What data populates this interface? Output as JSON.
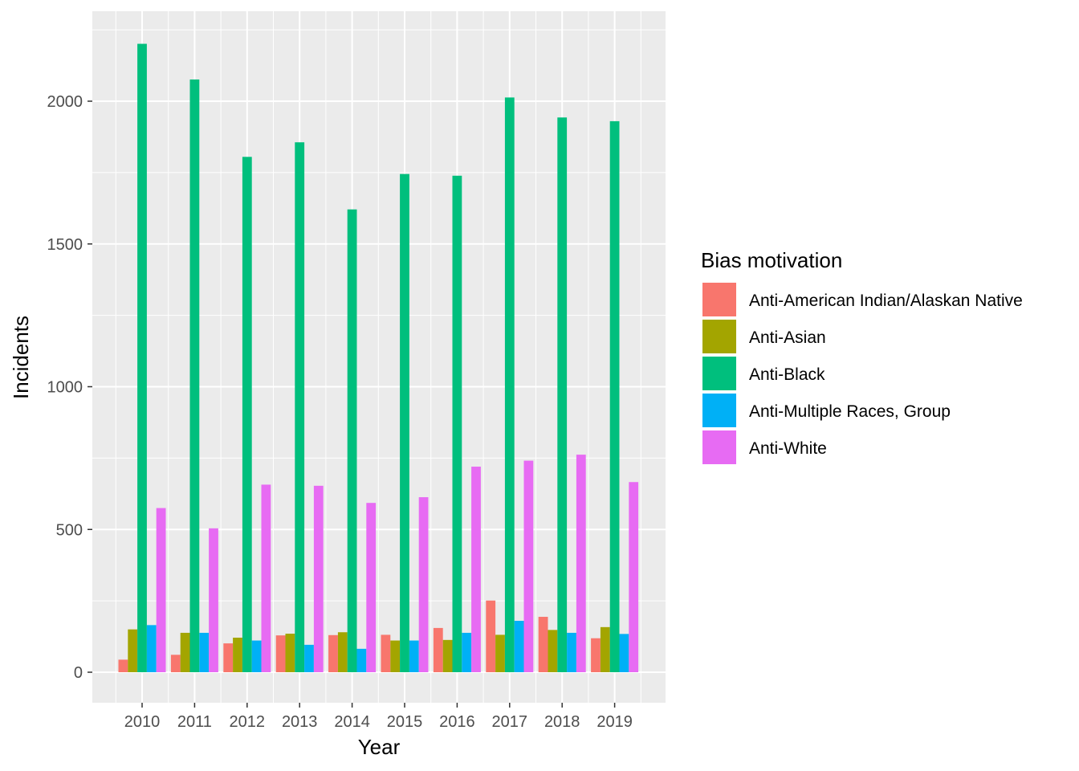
{
  "chart_data": {
    "type": "bar",
    "title": "",
    "xlabel": "Year",
    "ylabel": "Incidents",
    "ylim": [
      -100,
      2300
    ],
    "yticks": [
      0,
      500,
      1000,
      1500,
      2000
    ],
    "grid": true,
    "legend": {
      "title": "Bias motivation",
      "position": "right"
    },
    "categories": [
      "2010",
      "2011",
      "2012",
      "2013",
      "2014",
      "2015",
      "2016",
      "2017",
      "2018",
      "2019"
    ],
    "series": [
      {
        "name": "Anti-American Indian/Alaskan Native",
        "color": "#F8766D",
        "values": [
          44,
          61,
          101,
          129,
          130,
          131,
          155,
          251,
          194,
          119
        ]
      },
      {
        "name": "Anti-Asian",
        "color": "#A3A500",
        "values": [
          150,
          138,
          121,
          135,
          140,
          111,
          113,
          131,
          148,
          158
        ]
      },
      {
        "name": "Anti-Black",
        "color": "#00BF7D",
        "values": [
          2201,
          2076,
          1805,
          1856,
          1621,
          1745,
          1739,
          2013,
          1943,
          1930
        ]
      },
      {
        "name": "Anti-Multiple Races, Group",
        "color": "#00B0F6",
        "values": [
          165,
          138,
          111,
          96,
          82,
          111,
          138,
          180,
          138,
          134
        ]
      },
      {
        "name": "Anti-White",
        "color": "#E76BF3",
        "values": [
          575,
          504,
          657,
          653,
          593,
          613,
          720,
          741,
          762,
          666
        ]
      }
    ]
  }
}
